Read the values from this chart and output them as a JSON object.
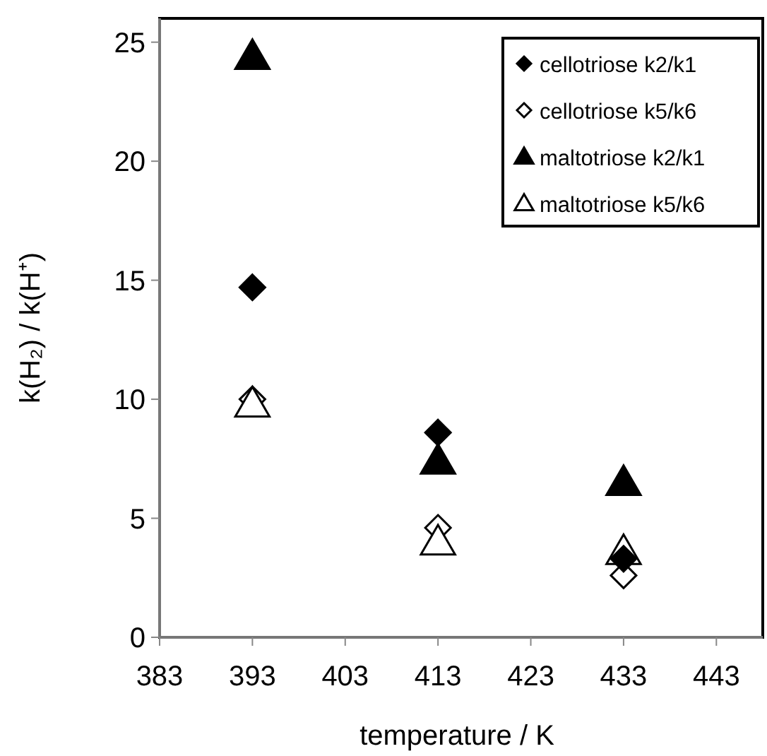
{
  "chart_data": {
    "type": "scatter",
    "xlabel": "temperature / K",
    "ylabel": "k(H₂) / k(H⁺)",
    "x": [
      393,
      413,
      433
    ],
    "xlim": [
      383,
      448
    ],
    "xticks": [
      383,
      393,
      403,
      413,
      423,
      433,
      443
    ],
    "ylim": [
      0,
      26
    ],
    "yticks": [
      0,
      5,
      10,
      15,
      20,
      25
    ],
    "grid": false,
    "legend": "top right",
    "series": [
      {
        "name": "cellotriose k2/k1",
        "color": "#000000",
        "marker": "diamond",
        "values": [
          14.7,
          8.6,
          3.3
        ]
      },
      {
        "name": "cellotriose k5/k6",
        "color": "#ffffff",
        "marker": "diamond",
        "values": [
          10,
          4.6,
          2.6
        ]
      },
      {
        "name": "maltotriose k2/k1",
        "color": "#000000",
        "marker": "triangle",
        "values": [
          24.4,
          7.4,
          6.5
        ]
      },
      {
        "name": "maltotriose k5/k6",
        "color": "#ffffff",
        "marker": "triangle",
        "values": [
          9.8,
          4,
          3.6
        ]
      }
    ]
  }
}
